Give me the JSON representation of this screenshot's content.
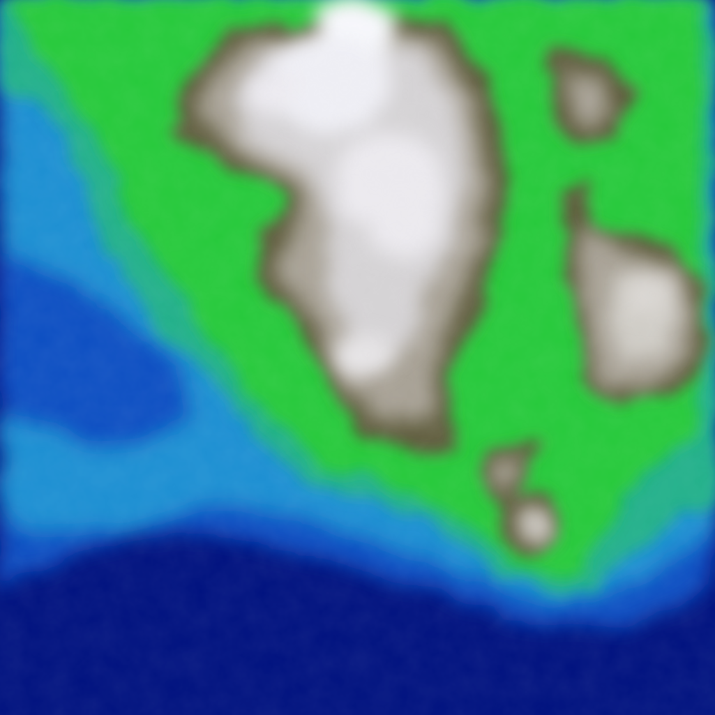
{
  "map": {
    "type": "terrain-heightmap",
    "legend_colors": {
      "deep_water": "#00127f",
      "water": "#0b4fc2",
      "shallow_water": "#1f8fd2",
      "coast": "#21b08a",
      "lowland": "#27c93b",
      "hills": "#5f5c3d",
      "mountain": "#a7a195",
      "peak": "#f6f7fb"
    }
  }
}
